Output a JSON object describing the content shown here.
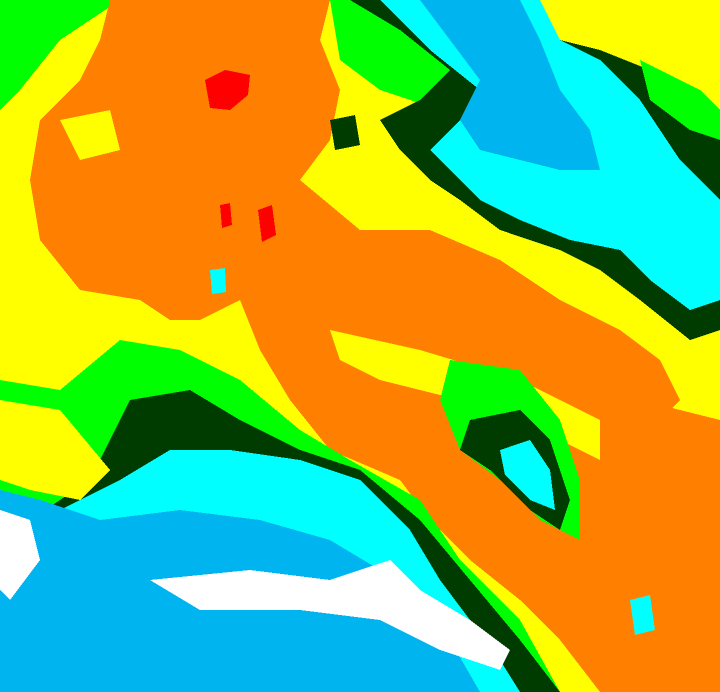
{
  "image": {
    "kind": "color-enhanced satellite imagery",
    "palette": {
      "red": "#ff0000",
      "orange": "#ff8000",
      "yellow": "#ffff00",
      "green": "#00ff00",
      "dark_green": "#003c00",
      "cyan": "#00ffff",
      "blue": "#00b4f0",
      "white": "#ffffff"
    }
  }
}
